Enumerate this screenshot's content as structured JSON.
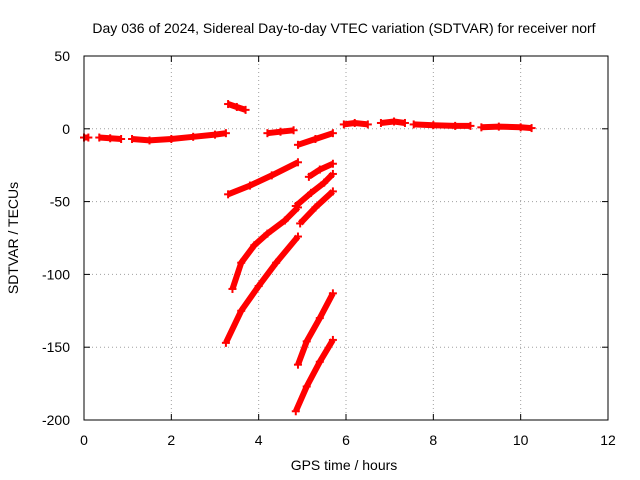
{
  "chart_data": {
    "type": "scatter",
    "title": "Day 036 of 2024, Sidereal Day-to-day VTEC variation (SDTVAR) for receiver norf",
    "xlabel": "GPS time / hours",
    "ylabel": "SDTVAR / TECUs",
    "xlim": [
      0,
      12
    ],
    "ylim": [
      -200,
      50
    ],
    "xticks": [
      0,
      2,
      4,
      6,
      8,
      10,
      12
    ],
    "yticks": [
      -200,
      -150,
      -100,
      -50,
      0,
      50
    ],
    "grid": true,
    "marker_color": "#ff0000",
    "series": [
      {
        "x": [
          0.0,
          0.1
        ],
        "y": [
          -6,
          -6
        ]
      },
      {
        "x": [
          0.35,
          0.6,
          0.85
        ],
        "y": [
          -6,
          -6.5,
          -7
        ]
      },
      {
        "x": [
          1.1,
          1.5,
          2.0,
          2.5,
          3.0,
          3.25
        ],
        "y": [
          -7,
          -8,
          -7,
          -5.5,
          -4,
          -3
        ]
      },
      {
        "x": [
          3.3,
          3.5,
          3.7
        ],
        "y": [
          17,
          15,
          13
        ]
      },
      {
        "x": [
          4.2,
          4.5,
          4.8
        ],
        "y": [
          -3,
          -2,
          -1
        ]
      },
      {
        "x": [
          4.9,
          5.3,
          5.7
        ],
        "y": [
          -11,
          -7,
          -3
        ]
      },
      {
        "x": [
          5.95,
          6.2,
          6.5
        ],
        "y": [
          3,
          4,
          3
        ]
      },
      {
        "x": [
          6.8,
          7.1,
          7.35
        ],
        "y": [
          4,
          5,
          4
        ]
      },
      {
        "x": [
          7.55,
          8.0,
          8.5,
          8.85
        ],
        "y": [
          3,
          2.5,
          2,
          2
        ]
      },
      {
        "x": [
          9.1,
          9.5,
          10.0,
          10.25
        ],
        "y": [
          1,
          1.5,
          1,
          0.5
        ]
      },
      {
        "x": [
          3.3,
          3.8,
          4.3,
          4.9
        ],
        "y": [
          -45,
          -39,
          -32,
          -23
        ]
      },
      {
        "x": [
          5.15,
          5.4,
          5.7
        ],
        "y": [
          -33,
          -28,
          -24
        ]
      },
      {
        "x": [
          3.4,
          3.6,
          3.9,
          4.2,
          4.6,
          4.9
        ],
        "y": [
          -110,
          -92,
          -80,
          -72,
          -63,
          -54
        ]
      },
      {
        "x": [
          4.85,
          5.2,
          5.5,
          5.7
        ],
        "y": [
          -53,
          -44,
          -37,
          -31
        ]
      },
      {
        "x": [
          3.25,
          3.6,
          4.0,
          4.4,
          4.9
        ],
        "y": [
          -147,
          -125,
          -108,
          -92,
          -74
        ]
      },
      {
        "x": [
          4.95,
          5.3,
          5.7
        ],
        "y": [
          -65,
          -54,
          -43
        ]
      },
      {
        "x": [
          4.9,
          5.1,
          5.4,
          5.7
        ],
        "y": [
          -162,
          -146,
          -130,
          -113
        ]
      },
      {
        "x": [
          4.85,
          5.1,
          5.4,
          5.7
        ],
        "y": [
          -194,
          -177,
          -160,
          -145
        ]
      }
    ]
  }
}
